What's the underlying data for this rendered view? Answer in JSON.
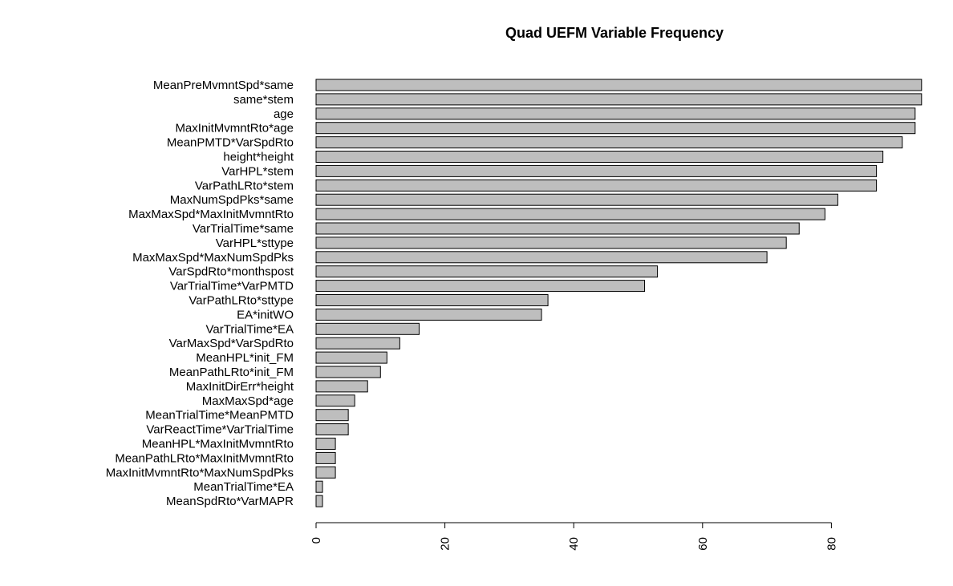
{
  "chart_data": {
    "type": "bar",
    "orientation": "horizontal",
    "title": "Quad UEFM Variable Frequency",
    "xlabel": "",
    "ylabel": "",
    "categories": [
      "MeanPreMvmntSpd*same",
      "same*stem",
      "age",
      "MaxInitMvmntRto*age",
      "MeanPMTD*VarSpdRto",
      "height*height",
      "VarHPL*stem",
      "VarPathLRto*stem",
      "MaxNumSpdPks*same",
      "MaxMaxSpd*MaxInitMvmntRto",
      "VarTrialTime*same",
      "VarHPL*sttype",
      "MaxMaxSpd*MaxNumSpdPks",
      "VarSpdRto*monthspost",
      "VarTrialTime*VarPMTD",
      "VarPathLRto*sttype",
      "EA*initWO",
      "VarTrialTime*EA",
      "VarMaxSpd*VarSpdRto",
      "MeanHPL*init_FM",
      "MeanPathLRto*init_FM",
      "MaxInitDirErr*height",
      "MaxMaxSpd*age",
      "MeanTrialTime*MeanPMTD",
      "VarReactTime*VarTrialTime",
      "MeanHPL*MaxInitMvmntRto",
      "MeanPathLRto*MaxInitMvmntRto",
      "MaxInitMvmntRto*MaxNumSpdPks",
      "MeanTrialTime*EA",
      "MeanSpdRto*VarMAPR"
    ],
    "values": [
      94,
      94,
      93,
      93,
      91,
      88,
      87,
      87,
      81,
      79,
      75,
      73,
      70,
      53,
      51,
      36,
      35,
      16,
      13,
      11,
      10,
      8,
      6,
      5,
      5,
      3,
      3,
      3,
      1,
      1
    ],
    "xlim": [
      0,
      94
    ],
    "xticks": [
      0,
      20,
      40,
      60,
      80
    ],
    "tick_labels": [
      "0",
      "20",
      "40",
      "60",
      "80"
    ],
    "grid": false,
    "legend": "none",
    "colors": {
      "bar_fill": "#bebebe",
      "bar_stroke": "#000000",
      "axis": "#000000",
      "text": "#000000",
      "background": "#ffffff"
    }
  }
}
